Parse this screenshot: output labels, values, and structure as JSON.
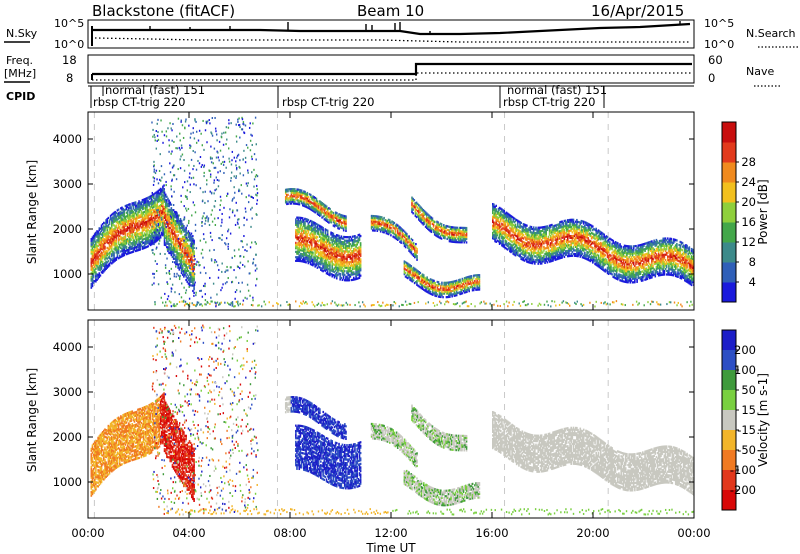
{
  "header": {
    "station": "Blackstone (fitACF)",
    "beam": "Beam 10",
    "date": "16/Apr/2015"
  },
  "top_panels": {
    "nsky_label": "N.Sky",
    "nsky_ticks": [
      "10^5",
      "10^0"
    ],
    "nsearch_label": "N.Search",
    "nsearch_ticks": [
      "10^5",
      "10^0"
    ],
    "freq_label_line1": "Freq.",
    "freq_label_line2": "[MHz]",
    "freq_ticks": [
      "18",
      "8"
    ],
    "nave_label": "Nave",
    "nave_ticks": [
      "60",
      "0"
    ],
    "cpid_label": "CPID",
    "cpid_segments": [
      {
        "label": "rbsp CT-trig 220"
      },
      {
        "label": "normal (fast) 151"
      },
      {
        "label": "rbsp CT-trig 220"
      },
      {
        "label": "rbsp CT-trig 220"
      },
      {
        "label": "normal (fast) 151"
      }
    ]
  },
  "chart_data": [
    {
      "type": "heatmap",
      "title": "",
      "ylabel": "Slant Range [km]",
      "xlabel": "",
      "xlim_hours": [
        0,
        24
      ],
      "ylim": [
        200,
        4600
      ],
      "yticks": [
        1000,
        2000,
        3000,
        4000
      ],
      "colorbar_label": "Power [dB]",
      "colorbar_ticks": [
        "4",
        "8",
        "12",
        "16",
        "20",
        "24",
        "28"
      ],
      "colors": [
        "#1a1adc",
        "#2f5fb8",
        "#3c8a8a",
        "#43a74a",
        "#8fcf3c",
        "#f2c01e",
        "#f08a1e",
        "#e23a1c",
        "#c80e0e"
      ]
    },
    {
      "type": "heatmap",
      "title": "",
      "ylabel": "Slant Range [km]",
      "xlabel": "Time UT",
      "xlim_hours": [
        0,
        24
      ],
      "ylim": [
        200,
        4600
      ],
      "yticks": [
        1000,
        2000,
        3000,
        4000
      ],
      "xticks": [
        "00:00",
        "04:00",
        "08:00",
        "12:00",
        "16:00",
        "20:00",
        "00:00"
      ],
      "colorbar_label": "Velocity [m s-1]",
      "colorbar_ticks": [
        "200",
        "100",
        "50",
        "15",
        "-15",
        "-50",
        "-100",
        "-200"
      ],
      "colors": [
        "#1c1ec8",
        "#2d4fc4",
        "#3f9a3c",
        "#79cf40",
        "#c8c8c0",
        "#f2b52a",
        "#f07a22",
        "#e2381c",
        "#d80808"
      ]
    }
  ]
}
